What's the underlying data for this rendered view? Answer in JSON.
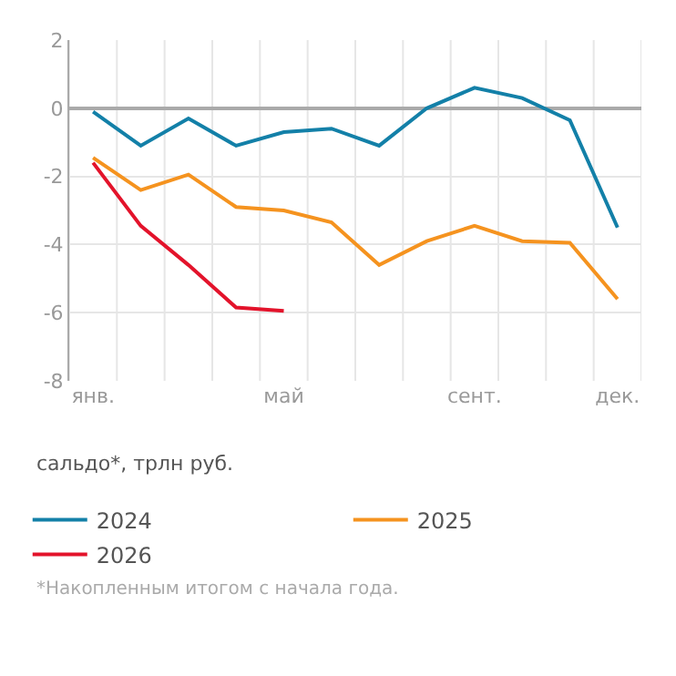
{
  "chart_data": {
    "type": "line",
    "ylabel": "сальдо*, трлн руб.",
    "categories": [
      "янв.",
      null,
      null,
      null,
      "май",
      null,
      null,
      null,
      "сент.",
      null,
      null,
      "дек."
    ],
    "series": [
      {
        "name": "2024",
        "color": "#1380a8",
        "values": [
          -0.1,
          -1.1,
          -0.3,
          -1.1,
          -0.7,
          -0.6,
          -1.1,
          0,
          0.6,
          0.3,
          -0.35,
          -3.5
        ]
      },
      {
        "name": "2025",
        "color": "#f5931f",
        "values": [
          -1.45,
          -2.4,
          -1.95,
          -2.9,
          -3.0,
          -3.35,
          -4.6,
          -3.9,
          -3.45,
          -3.9,
          -3.95,
          -5.6
        ]
      },
      {
        "name": "2026",
        "color": "#e3132b",
        "values": [
          -1.6,
          -3.45,
          -4.6,
          -5.85,
          -5.95,
          null,
          null,
          null,
          null,
          null,
          null,
          null
        ]
      }
    ],
    "ylim": [
      -8,
      2
    ],
    "yticks": [
      -8,
      -6,
      -4,
      -2,
      0,
      2
    ],
    "grid": true,
    "legend": "bottom",
    "marker": "none",
    "line_style": "solid",
    "annotations": [
      "*Накопленным итогом с начала года."
    ]
  }
}
